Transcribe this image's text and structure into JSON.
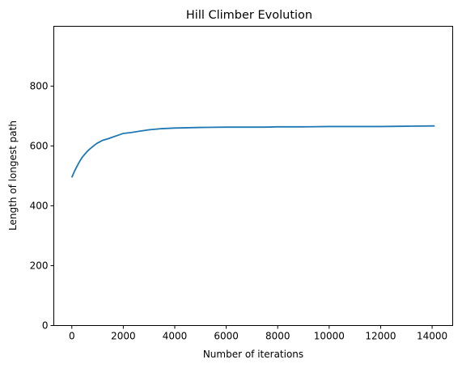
{
  "chart_data": {
    "type": "line",
    "title": "Hill Climber Evolution",
    "xlabel": "Number of iterations",
    "ylabel": "Length of longest path",
    "xlim": [
      -700,
      14800
    ],
    "ylim": [
      0,
      1000
    ],
    "x_ticks": [
      0,
      2000,
      4000,
      6000,
      8000,
      10000,
      12000,
      14000
    ],
    "y_ticks": [
      0,
      200,
      400,
      600,
      800
    ],
    "grid": false,
    "series": [
      {
        "color": "#1f77b4",
        "x": [
          0,
          100,
          200,
          300,
          400,
          500,
          600,
          700,
          800,
          900,
          1000,
          1200,
          1400,
          1600,
          1800,
          2000,
          2300,
          2600,
          3000,
          3500,
          4000,
          5000,
          6000,
          7000,
          7500,
          8000,
          9000,
          10000,
          11000,
          12000,
          13000,
          14100
        ],
        "y": [
          495,
          515,
          532,
          548,
          562,
          572,
          582,
          590,
          597,
          604,
          610,
          619,
          624,
          630,
          636,
          642,
          645,
          649,
          654,
          658,
          660,
          662,
          663,
          663,
          663,
          664,
          664,
          665,
          665,
          665,
          666,
          667
        ]
      }
    ]
  }
}
